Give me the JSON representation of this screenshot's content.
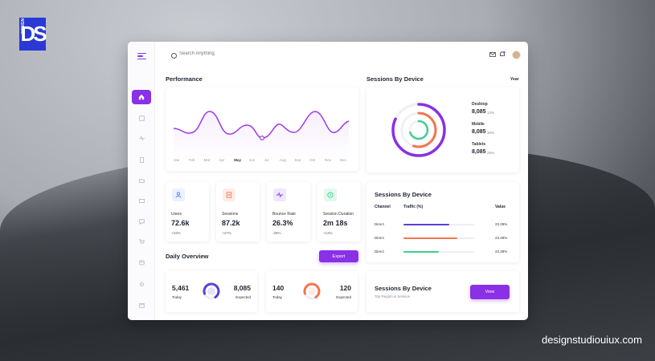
{
  "brand": {
    "logo_text": "DS",
    "logo_small": "DESIGN",
    "url": "designstudiouiux.com"
  },
  "search": {
    "placeholder": "Search Anything"
  },
  "performance": {
    "title": "Performance",
    "months": [
      "Jan",
      "Feb",
      "Mar",
      "Apr",
      "May",
      "Jun",
      "Jul",
      "Aug",
      "Sep",
      "Oct",
      "Nov",
      "Dec"
    ],
    "selected_month": "May",
    "line_color": "#9b3be6"
  },
  "sessions_device": {
    "title": "Sessions By Device",
    "period": "Year",
    "items": [
      {
        "label": "Desktop",
        "value": "8,085",
        "pct": "13%",
        "color": "#8a30e6"
      },
      {
        "label": "Mobile",
        "value": "8,085",
        "pct": "30%",
        "color": "#f2764f"
      },
      {
        "label": "Tablets",
        "value": "8,085",
        "pct": "25%",
        "color": "#3ecf8e"
      }
    ]
  },
  "stats": [
    {
      "label": "Users",
      "value": "72.6k",
      "change": "+23%",
      "icon": "users-icon",
      "bg": "#eaf1ff",
      "fg": "#5b7be8"
    },
    {
      "label": "Sessions",
      "value": "87.2k",
      "change": "+47%",
      "icon": "sessions-icon",
      "bg": "#ffece6",
      "fg": "#f2764f"
    },
    {
      "label": "Bounce Rate",
      "value": "26.3%",
      "change": "-28%",
      "icon": "pulse-icon",
      "bg": "#efe8fb",
      "fg": "#7c3aed"
    },
    {
      "label": "Session Duration",
      "value": "2m 18s",
      "change": "+13%",
      "icon": "clock-icon",
      "bg": "#e3f8ef",
      "fg": "#3ecf8e"
    }
  ],
  "traffic": {
    "title": "Sessions By Device",
    "headers": [
      "Channel",
      "Traffic (%)",
      "Value"
    ],
    "rows": [
      {
        "channel": "Direct",
        "fraction": 0.65,
        "value": "23.28%",
        "color": "#5a3fd6"
      },
      {
        "channel": "Direct",
        "fraction": 0.76,
        "value": "23.28%",
        "color": "#f2764f"
      },
      {
        "channel": "Direct",
        "fraction": 0.5,
        "value": "23.28%",
        "color": "#3ecf8e"
      }
    ]
  },
  "daily": {
    "title": "Daily Overview",
    "export_label": "Export",
    "cards": [
      {
        "today": "5,461",
        "today_label": "Today",
        "expected": "8,085",
        "expected_label": "Expected",
        "color": "#5a3fd6"
      },
      {
        "today": "140",
        "today_label": "Today",
        "expected": "120",
        "expected_label": "Expected",
        "color": "#f2764f"
      }
    ]
  },
  "bottom_card": {
    "title": "Sessions By Device",
    "subtitle": "Top Region & Session",
    "button_label": "View"
  }
}
